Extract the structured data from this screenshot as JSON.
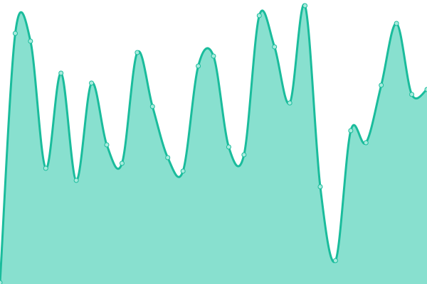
{
  "chart_data": {
    "type": "area",
    "title": "",
    "xlabel": "",
    "ylabel": "",
    "x": [
      0,
      1,
      2,
      3,
      4,
      5,
      6,
      7,
      8,
      9,
      10,
      11,
      12,
      13,
      14,
      15,
      16,
      17,
      18,
      19,
      20,
      21,
      22,
      23,
      24,
      25,
      26,
      27,
      28
    ],
    "series": [
      {
        "values": [
          2,
          353,
          342,
          163,
          297,
          146,
          283,
          196,
          170,
          326,
          250,
          178,
          159,
          307,
          321,
          193,
          182,
          378,
          334,
          255,
          392,
          137,
          33,
          216,
          199,
          280,
          367,
          267,
          274
        ]
      }
    ],
    "ylim": [
      0,
      400
    ],
    "xlim": [
      0,
      28
    ],
    "grid": false,
    "axes_visible": false,
    "smooth": true,
    "colors": {
      "fill": "#88e0cf",
      "line": "#1abc9c",
      "point_fill": "#a8ebdd",
      "point_stroke": "#1abc9c"
    }
  }
}
